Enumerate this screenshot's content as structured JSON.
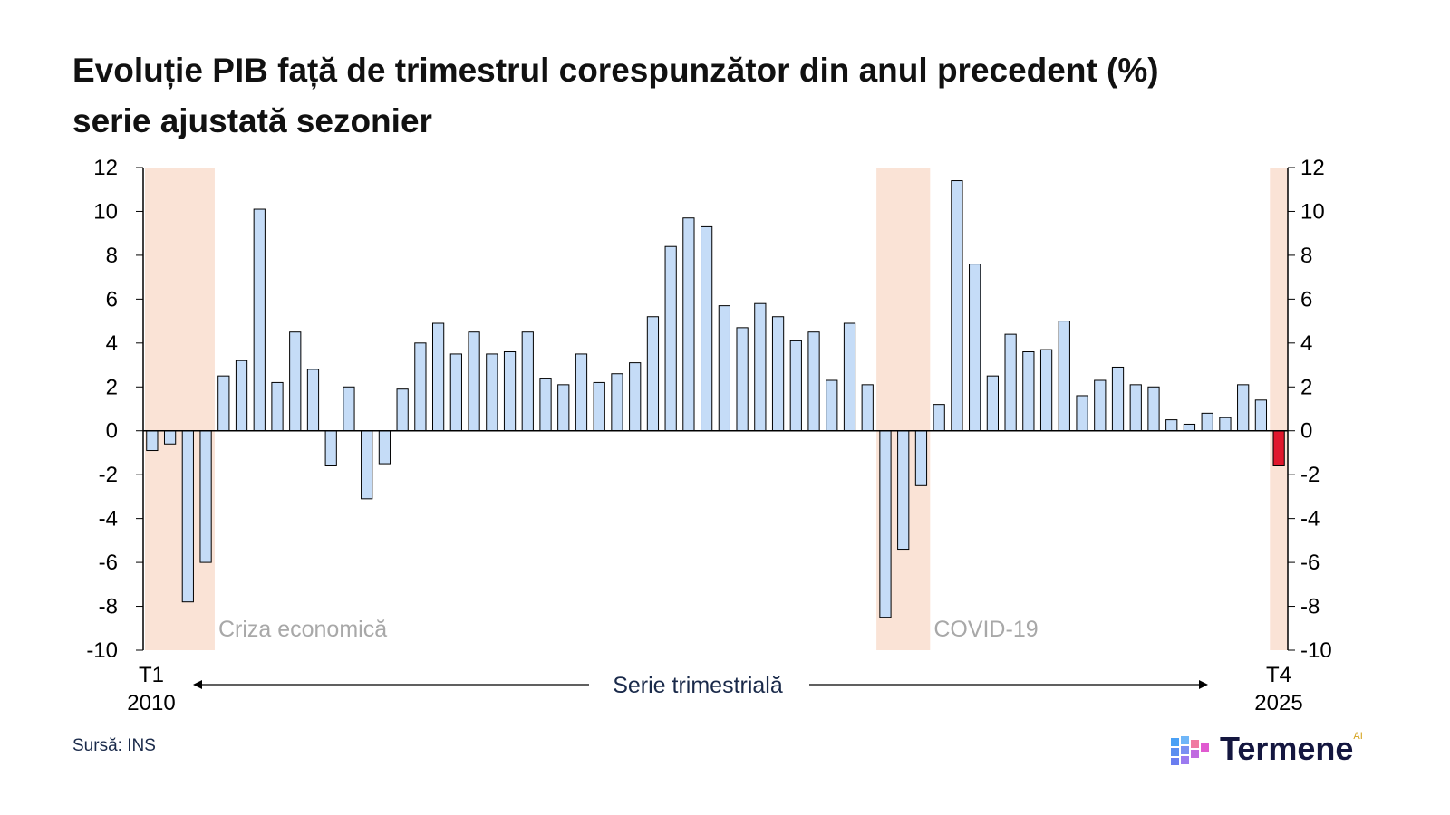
{
  "chart_data": {
    "type": "bar",
    "title": "Evoluție PIB față de trimestrul corespunzător din anul precedent (%)",
    "subtitle": "serie ajustată sezonier",
    "ylim": [
      -10,
      12
    ],
    "yticks": [
      12,
      10,
      8,
      6,
      4,
      2,
      0,
      -2,
      -4,
      -6,
      -8,
      -10
    ],
    "x_start_label": [
      "T1",
      "2010"
    ],
    "x_end_label": [
      "T4",
      "2025"
    ],
    "x_axis_caption": "Serie trimestrială",
    "values": [
      -0.9,
      -0.6,
      -7.8,
      -6.0,
      2.5,
      3.2,
      10.1,
      2.2,
      4.5,
      2.8,
      -1.6,
      2.0,
      -3.1,
      -1.5,
      1.9,
      4.0,
      4.9,
      3.5,
      4.5,
      3.5,
      3.6,
      4.5,
      2.4,
      2.1,
      3.5,
      2.2,
      2.6,
      3.1,
      5.2,
      8.4,
      9.7,
      9.3,
      5.7,
      4.7,
      5.8,
      5.2,
      4.1,
      4.5,
      2.3,
      4.9,
      2.1,
      -8.5,
      -5.4,
      -2.5,
      1.2,
      11.4,
      7.6,
      2.5,
      4.4,
      3.6,
      3.7,
      5.0,
      1.6,
      2.3,
      2.9,
      2.1,
      2.0,
      0.5,
      0.3,
      0.8,
      0.6,
      2.1,
      1.4,
      -1.6
    ],
    "highlight_last": true,
    "shaded_periods": [
      {
        "label": "Criza economică",
        "from_index": 0,
        "to_index": 3
      },
      {
        "label": "COVID-19",
        "from_index": 41,
        "to_index": 43
      },
      {
        "label": "",
        "from_index": 63,
        "to_index": 63
      }
    ],
    "colors": {
      "bar": "#c5dcf7",
      "bar_edge": "#000000",
      "last_bar": "#e0162b",
      "shade": "#fae3d6"
    }
  },
  "source": "Sursă: INS",
  "logo": {
    "text": "Termene",
    "suffix": "AI"
  }
}
